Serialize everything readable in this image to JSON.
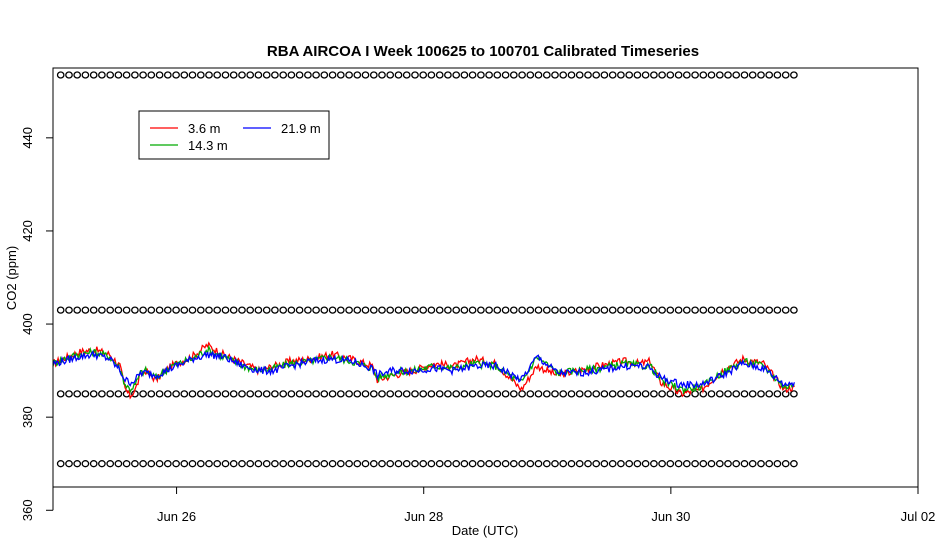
{
  "chart_data": {
    "type": "line",
    "title": "RBA AIRCOA I  Week 100625 to 100701  Calibrated Timeseries",
    "xlabel": "Date (UTC)",
    "ylabel": "CO2 (ppm)",
    "xlim": [
      "2010-06-25T00:00",
      "2010-07-02T00:00"
    ],
    "ylim": [
      365,
      455
    ],
    "x_ticks": [
      {
        "date": "2010-06-26T00:00",
        "label": "Jun 26"
      },
      {
        "date": "2010-06-28T00:00",
        "label": "Jun 28"
      },
      {
        "date": "2010-06-30T00:00",
        "label": "Jun 30"
      },
      {
        "date": "2010-07-02T00:00",
        "label": "Jul 02"
      }
    ],
    "y_ticks": [
      360,
      380,
      400,
      420,
      440
    ],
    "y_tick_labels": [
      "360",
      "380",
      "400",
      "420",
      "440"
    ],
    "grid": false,
    "legend": {
      "placement": "top-left",
      "columns": 2
    },
    "series": [
      {
        "name": "3.6 m",
        "color": "#ff0000",
        "x": [
          "2010-06-25T00:00",
          "2010-06-25T02:00",
          "2010-06-25T05:00",
          "2010-06-25T08:00",
          "2010-06-25T11:00",
          "2010-06-25T13:00",
          "2010-06-25T14:00",
          "2010-06-25T15:00",
          "2010-06-25T16:00",
          "2010-06-25T17:00",
          "2010-06-25T18:00",
          "2010-06-25T20:00",
          "2010-06-25T23:00",
          "2010-06-26T03:00",
          "2010-06-26T06:00",
          "2010-06-26T09:00",
          "2010-06-26T13:00",
          "2010-06-26T16:00",
          "2010-06-26T19:00",
          "2010-06-26T22:00",
          "2010-06-27T02:00",
          "2010-06-27T06:00",
          "2010-06-27T10:00",
          "2010-06-27T14:00",
          "2010-06-27T15:00",
          "2010-06-27T18:00",
          "2010-06-27T22:00",
          "2010-06-28T02:00",
          "2010-06-28T06:00",
          "2010-06-28T10:00",
          "2010-06-28T14:00",
          "2010-06-28T18:00",
          "2010-06-28T19:00",
          "2010-06-28T22:00",
          "2010-06-29T02:00",
          "2010-06-29T06:00",
          "2010-06-29T10:00",
          "2010-06-29T15:00",
          "2010-06-29T18:00",
          "2010-06-29T20:00",
          "2010-06-29T22:00",
          "2010-06-30T02:00",
          "2010-06-30T06:00",
          "2010-06-30T10:00",
          "2010-06-30T14:00",
          "2010-06-30T16:00",
          "2010-06-30T18:00",
          "2010-06-30T22:00",
          "2010-07-01T00:00"
        ],
        "values": [
          391.5,
          392.5,
          394,
          394.5,
          393.5,
          391,
          386,
          384.5,
          386,
          389,
          390,
          388,
          391,
          393,
          395.5,
          393.5,
          391.5,
          390,
          391,
          392,
          392.5,
          393.5,
          392.5,
          391,
          388,
          389,
          390,
          391.5,
          391,
          392.5,
          391.5,
          387,
          386,
          391,
          389,
          390,
          391,
          392,
          391.5,
          392,
          387.5,
          385,
          386,
          390,
          392.5,
          392,
          391.5,
          386,
          386.5
        ]
      },
      {
        "name": "14.3 m",
        "color": "#00aa00",
        "x": [
          "2010-06-25T00:00",
          "2010-06-25T02:00",
          "2010-06-25T05:00",
          "2010-06-25T08:00",
          "2010-06-25T11:00",
          "2010-06-25T13:00",
          "2010-06-25T14:00",
          "2010-06-25T15:00",
          "2010-06-25T16:00",
          "2010-06-25T17:00",
          "2010-06-25T18:00",
          "2010-06-25T20:00",
          "2010-06-25T23:00",
          "2010-06-26T03:00",
          "2010-06-26T06:00",
          "2010-06-26T09:00",
          "2010-06-26T13:00",
          "2010-06-26T16:00",
          "2010-06-26T19:00",
          "2010-06-26T22:00",
          "2010-06-27T02:00",
          "2010-06-27T06:00",
          "2010-06-27T10:00",
          "2010-06-27T14:00",
          "2010-06-27T15:00",
          "2010-06-27T18:00",
          "2010-06-27T22:00",
          "2010-06-28T02:00",
          "2010-06-28T06:00",
          "2010-06-28T10:00",
          "2010-06-28T14:00",
          "2010-06-28T18:00",
          "2010-06-28T19:00",
          "2010-06-28T22:00",
          "2010-06-29T02:00",
          "2010-06-29T06:00",
          "2010-06-29T10:00",
          "2010-06-29T15:00",
          "2010-06-29T18:00",
          "2010-06-29T20:00",
          "2010-06-29T22:00",
          "2010-06-30T02:00",
          "2010-06-30T06:00",
          "2010-06-30T10:00",
          "2010-06-30T14:00",
          "2010-06-30T16:00",
          "2010-06-30T18:00",
          "2010-06-30T22:00",
          "2010-07-01T00:00"
        ],
        "values": [
          391.5,
          392.5,
          393.5,
          394,
          393,
          390.5,
          387,
          386,
          387,
          389.5,
          390,
          388.5,
          391,
          392.5,
          394.5,
          393,
          391,
          390,
          390.5,
          391.5,
          392,
          393,
          392,
          390.5,
          388.5,
          389.5,
          390,
          391,
          390.5,
          391.5,
          391,
          388,
          387.5,
          393,
          389.5,
          390,
          390.5,
          391.5,
          391,
          391,
          388,
          386,
          386.5,
          389.5,
          392,
          391.5,
          391,
          386.5,
          387
        ]
      },
      {
        "name": "21.9 m",
        "color": "#0000ff",
        "x": [
          "2010-06-25T00:00",
          "2010-06-25T02:00",
          "2010-06-25T05:00",
          "2010-06-25T08:00",
          "2010-06-25T11:00",
          "2010-06-25T13:00",
          "2010-06-25T14:00",
          "2010-06-25T15:00",
          "2010-06-25T16:00",
          "2010-06-25T17:00",
          "2010-06-25T18:00",
          "2010-06-25T20:00",
          "2010-06-25T23:00",
          "2010-06-26T03:00",
          "2010-06-26T06:00",
          "2010-06-26T09:00",
          "2010-06-26T13:00",
          "2010-06-26T16:00",
          "2010-06-26T19:00",
          "2010-06-26T22:00",
          "2010-06-27T02:00",
          "2010-06-27T06:00",
          "2010-06-27T10:00",
          "2010-06-27T14:00",
          "2010-06-27T15:00",
          "2010-06-27T18:00",
          "2010-06-27T22:00",
          "2010-06-28T02:00",
          "2010-06-28T06:00",
          "2010-06-28T10:00",
          "2010-06-28T14:00",
          "2010-06-28T18:00",
          "2010-06-28T19:00",
          "2010-06-28T22:00",
          "2010-06-29T02:00",
          "2010-06-29T06:00",
          "2010-06-29T10:00",
          "2010-06-29T15:00",
          "2010-06-29T18:00",
          "2010-06-29T20:00",
          "2010-06-29T22:00",
          "2010-06-30T02:00",
          "2010-06-30T06:00",
          "2010-06-30T10:00",
          "2010-06-30T14:00",
          "2010-06-30T16:00",
          "2010-06-30T18:00",
          "2010-06-30T22:00",
          "2010-07-01T00:00"
        ],
        "values": [
          391.5,
          392,
          393,
          393.5,
          392.5,
          390,
          388,
          387.5,
          388,
          389.5,
          389.5,
          389,
          390.5,
          392.5,
          393.5,
          393,
          391,
          390,
          390,
          391,
          392,
          392.5,
          392,
          390.5,
          389,
          390,
          390,
          390.5,
          390,
          391,
          391,
          388.5,
          388,
          393,
          389.5,
          389.5,
          390,
          391,
          391,
          390.5,
          388.5,
          387,
          387,
          389,
          391.5,
          391,
          390.5,
          387,
          387.5
        ]
      }
    ],
    "flag_rows": [
      {
        "y": 453.5,
        "marker": "o"
      },
      {
        "y": 403,
        "marker": "o"
      },
      {
        "y": 385,
        "marker": "o"
      },
      {
        "y": 370,
        "marker": "o"
      }
    ]
  }
}
